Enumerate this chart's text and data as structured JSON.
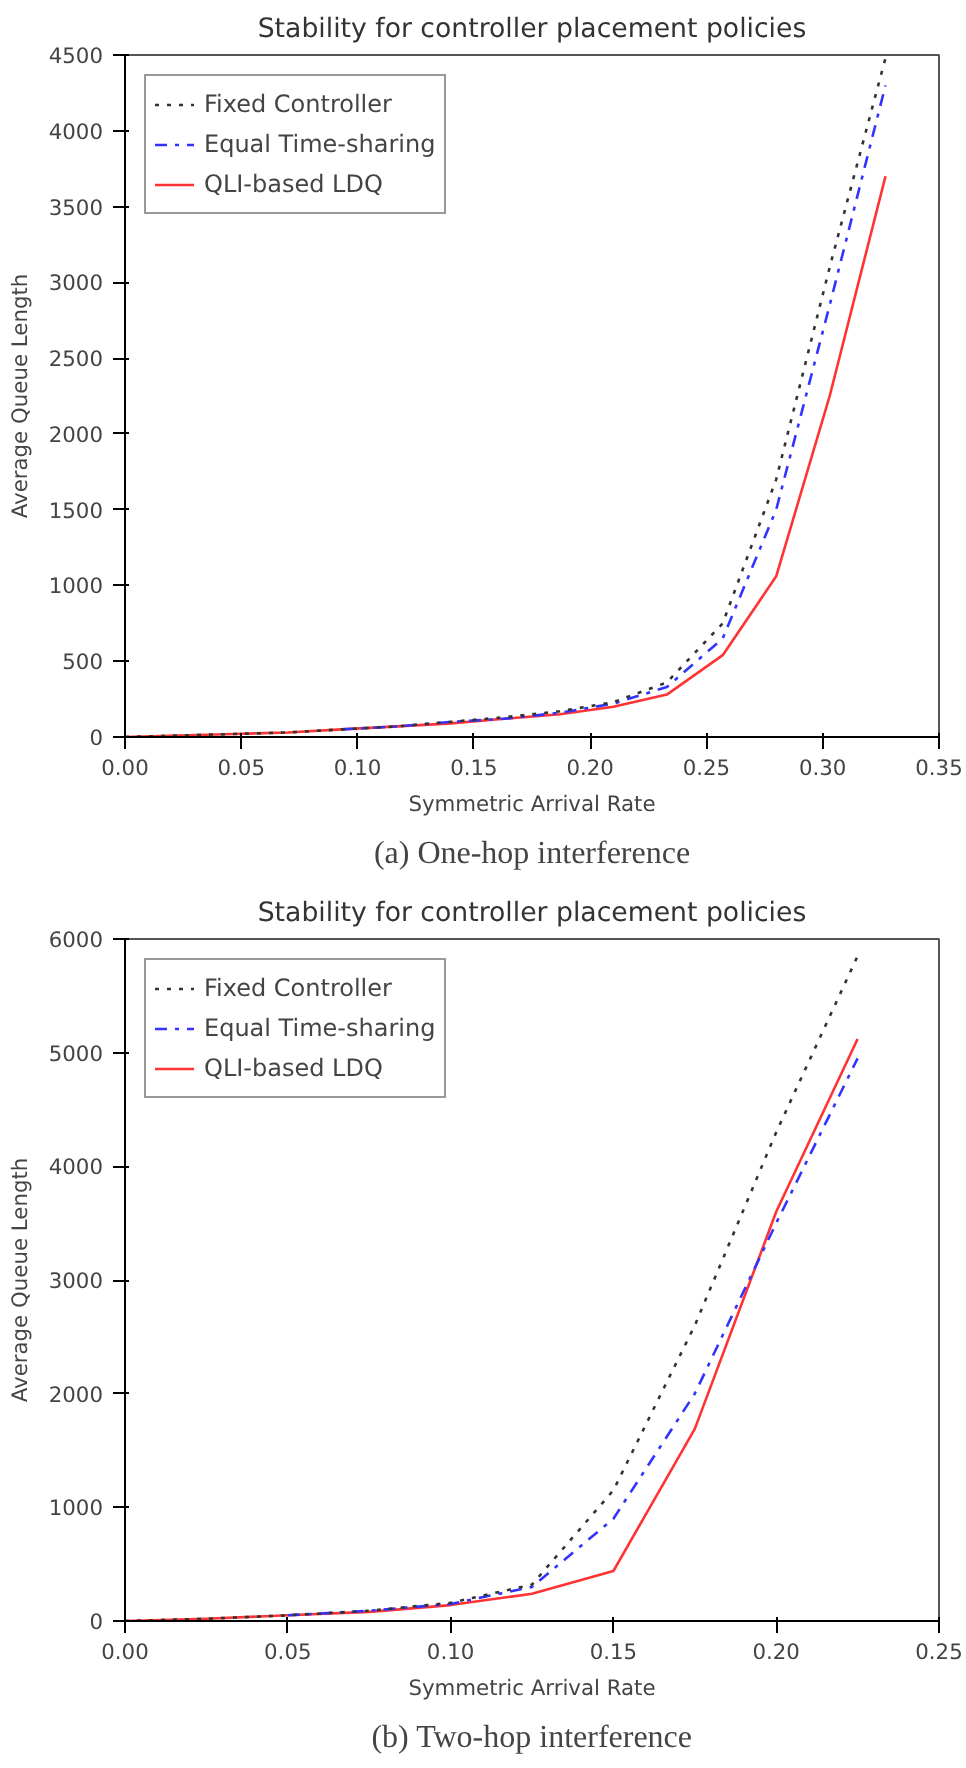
{
  "chart_data": [
    {
      "type": "line",
      "title": "Stability for controller placement policies",
      "xlabel": "Symmetric Arrival Rate",
      "ylabel": "Average Queue Length",
      "x": [
        0,
        0.023,
        0.047,
        0.07,
        0.093,
        0.117,
        0.14,
        0.163,
        0.187,
        0.21,
        0.233,
        0.257,
        0.28,
        0.303,
        0.327
      ],
      "series": [
        {
          "name": "Fixed Controller",
          "color": "#333333",
          "line_style": "dotted",
          "values": [
            0,
            10,
            20,
            30,
            50,
            70,
            100,
            130,
            170,
            230,
            360,
            750,
            1700,
            3100,
            4480
          ]
        },
        {
          "name": "Equal Time-sharing",
          "color": "#3333ff",
          "line_style": "dashdot",
          "values": [
            null,
            null,
            null,
            null,
            50,
            70,
            100,
            120,
            160,
            220,
            330,
            650,
            1500,
            2850,
            4300
          ]
        },
        {
          "name": "QLI-based LDQ",
          "color": "#ff3333",
          "line_style": "solid",
          "values": [
            0,
            10,
            20,
            30,
            50,
            70,
            90,
            120,
            150,
            200,
            280,
            540,
            1060,
            2250,
            3700
          ]
        }
      ],
      "xlim": [
        0,
        0.35
      ],
      "ylim": [
        0,
        4500
      ],
      "xticks": [
        {
          "value": 0,
          "label": "0.00"
        },
        {
          "value": 0.05,
          "label": "0.05"
        },
        {
          "value": 0.1,
          "label": "0.10"
        },
        {
          "value": 0.15,
          "label": "0.15"
        },
        {
          "value": 0.2,
          "label": "0.20"
        },
        {
          "value": 0.25,
          "label": "0.25"
        },
        {
          "value": 0.3,
          "label": "0.30"
        },
        {
          "value": 0.35,
          "label": "0.35"
        }
      ],
      "yticks": [
        0,
        500,
        1000,
        1500,
        2000,
        2500,
        3000,
        3500,
        4000,
        4500
      ],
      "legend": "top left",
      "grid": false,
      "annotations": [
        "(a) One-hop interference"
      ]
    },
    {
      "type": "line",
      "title": "Stability for controller placement policies",
      "xlabel": "Symmetric Arrival Rate",
      "ylabel": "Average Queue Length",
      "x": [
        0,
        0.025,
        0.05,
        0.075,
        0.1,
        0.125,
        0.15,
        0.175,
        0.2,
        0.225
      ],
      "series": [
        {
          "name": "Fixed Controller",
          "color": "#333333",
          "line_style": "dotted",
          "values": [
            0,
            20,
            50,
            90,
            160,
            320,
            1150,
            2600,
            4300,
            5850
          ]
        },
        {
          "name": "Equal Time-sharing",
          "color": "#3333ff",
          "line_style": "dashdot",
          "values": [
            null,
            null,
            50,
            90,
            150,
            300,
            900,
            2000,
            3500,
            4950
          ]
        },
        {
          "name": "QLI-based LDQ",
          "color": "#ff3333",
          "line_style": "solid",
          "values": [
            0,
            20,
            50,
            80,
            140,
            240,
            440,
            1690,
            3600,
            5120
          ]
        }
      ],
      "xlim": [
        0,
        0.25
      ],
      "ylim": [
        0,
        6000
      ],
      "xticks": [
        {
          "value": 0,
          "label": "0.00"
        },
        {
          "value": 0.05,
          "label": "0.05"
        },
        {
          "value": 0.1,
          "label": "0.10"
        },
        {
          "value": 0.15,
          "label": "0.15"
        },
        {
          "value": 0.2,
          "label": "0.20"
        },
        {
          "value": 0.25,
          "label": "0.25"
        }
      ],
      "yticks": [
        0,
        1000,
        2000,
        3000,
        4000,
        5000,
        6000
      ],
      "legend": "top left",
      "grid": false,
      "annotations": [
        "(b) Two-hop interference"
      ]
    }
  ]
}
